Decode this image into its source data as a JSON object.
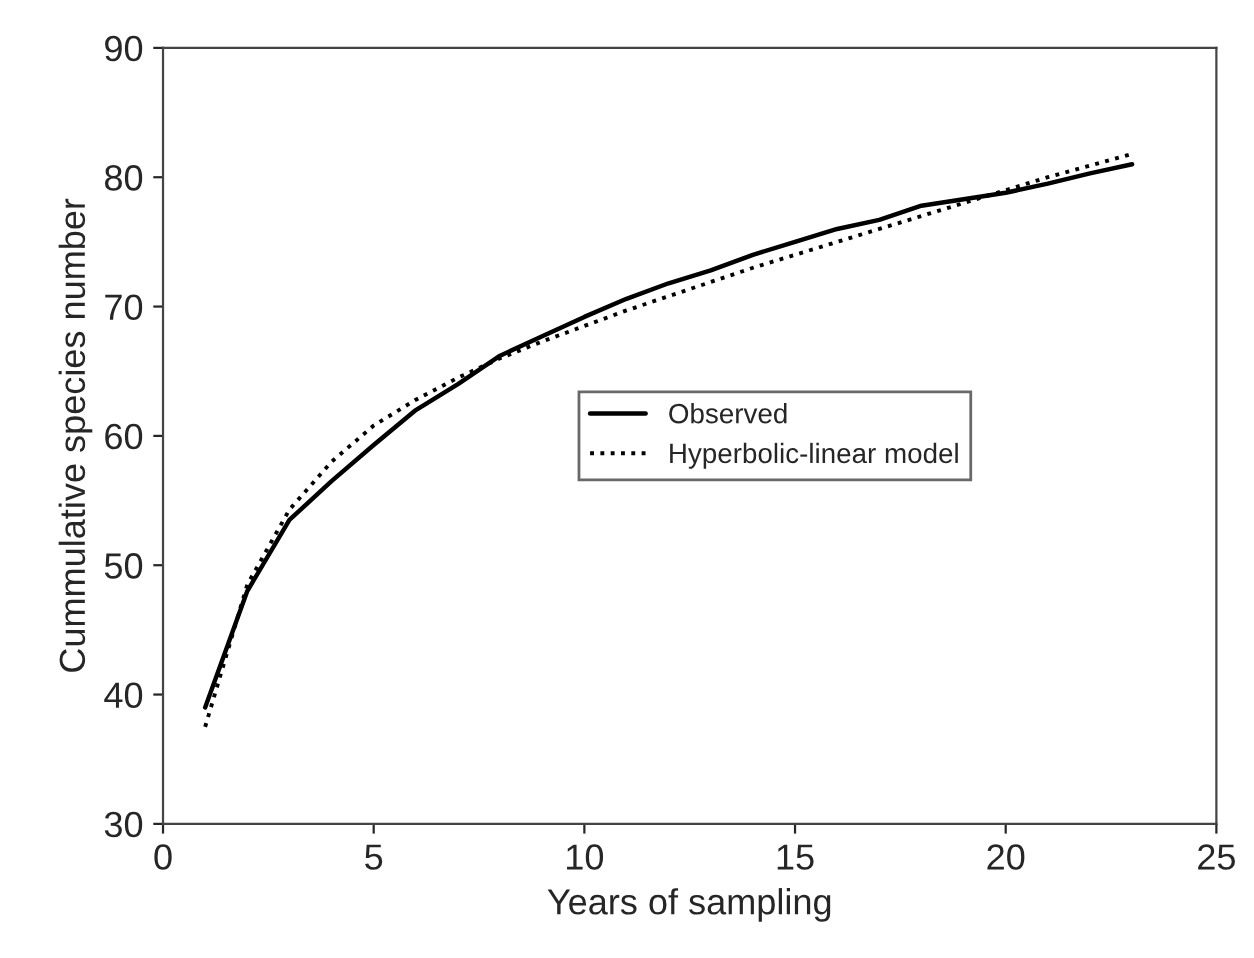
{
  "chart_data": {
    "type": "line",
    "xlabel": "Years of sampling",
    "ylabel": "Cummulative species number",
    "x": [
      1,
      2,
      3,
      4,
      5,
      6,
      7,
      8,
      9,
      10,
      11,
      12,
      13,
      14,
      15,
      16,
      17,
      18,
      19,
      20,
      21,
      22,
      23
    ],
    "series": [
      {
        "name": "Observed",
        "color": "#000000",
        "line_style": "solid",
        "values": [
          39,
          48,
          53.5,
          56.5,
          59.3,
          62,
          64,
          66.2,
          67.7,
          69.2,
          70.6,
          71.8,
          72.8,
          74,
          75,
          76,
          76.7,
          77.8,
          78.3,
          78.8,
          79.5,
          80.3,
          81
        ]
      },
      {
        "name": "Hyperbolic-linear model",
        "color": "#000000",
        "line_style": "dotted",
        "values": [
          37.5,
          48.5,
          54.3,
          58,
          60.8,
          62.8,
          64.5,
          66,
          67.3,
          68.5,
          69.7,
          70.8,
          71.9,
          73,
          74,
          75,
          76,
          77,
          78,
          79,
          80,
          80.9,
          81.8
        ]
      }
    ],
    "xlim": [
      0,
      25
    ],
    "xticks": [
      0,
      5,
      10,
      15,
      20,
      25
    ],
    "ylim": [
      30,
      90
    ],
    "yticks": [
      30,
      40,
      50,
      60,
      70,
      80,
      90
    ],
    "grid": false,
    "legend": "center right",
    "marker": "none"
  }
}
